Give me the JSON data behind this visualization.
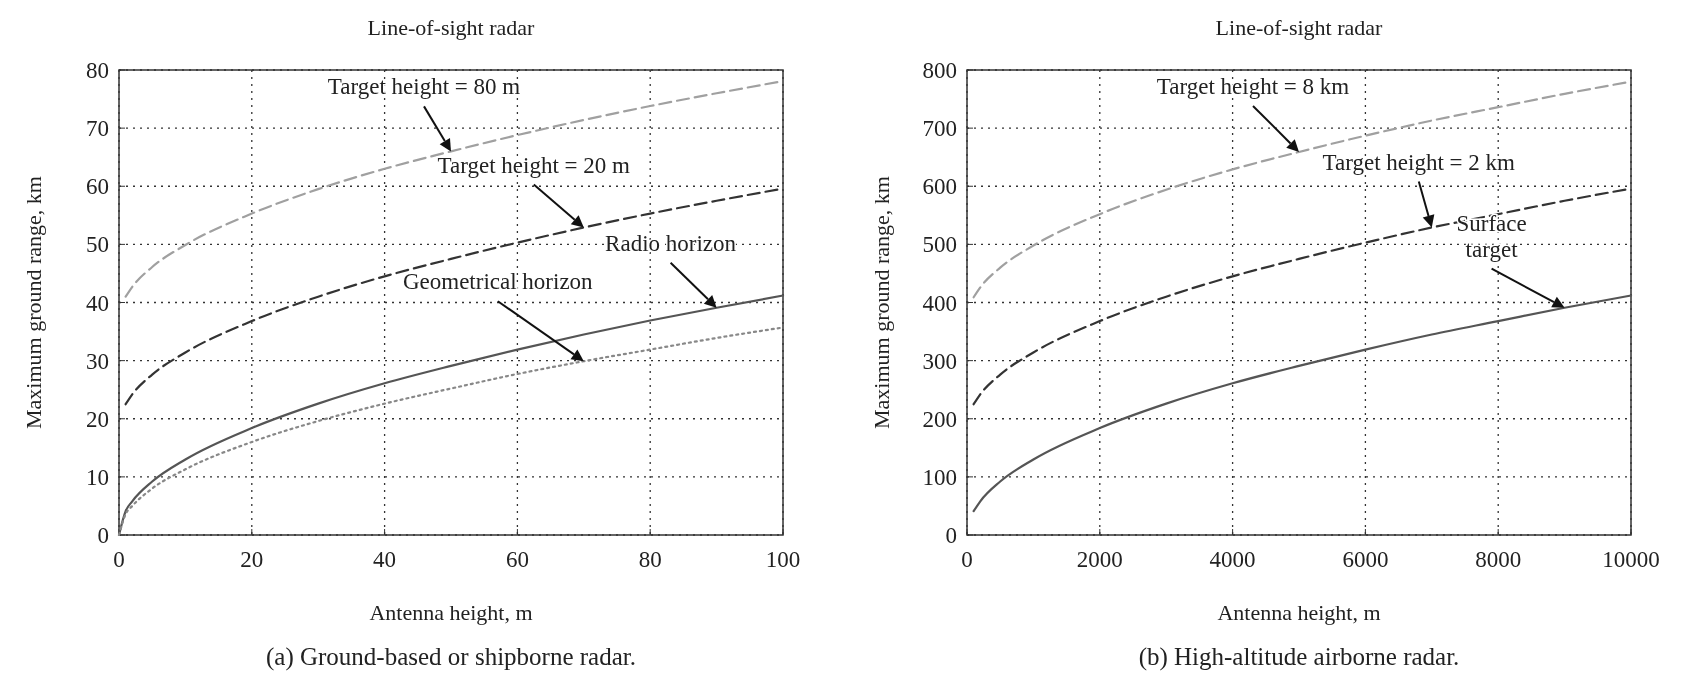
{
  "chart_data": [
    {
      "type": "line",
      "title": "Line-of-sight radar",
      "xlabel": "Antenna height, m",
      "ylabel": "Maximum ground range, km",
      "xlim": [
        0,
        100
      ],
      "ylim": [
        0,
        80
      ],
      "xticks": [
        0,
        20,
        40,
        60,
        80,
        100
      ],
      "yticks": [
        0,
        10,
        20,
        30,
        40,
        50,
        60,
        70,
        80
      ],
      "grid": true,
      "series": [
        {
          "color": "#a0a0a0",
          "line_style": "dashed",
          "x": [
            1,
            2,
            5,
            10,
            20,
            30,
            40,
            50,
            60,
            70,
            80,
            90,
            100
          ],
          "values": [
            41,
            42.7,
            46.1,
            49.9,
            55.3,
            59.5,
            63,
            66,
            68.8,
            71.4,
            73.8,
            76,
            78.1
          ]
        },
        {
          "color": "#333333",
          "line_style": "dashed",
          "x": [
            1,
            2,
            5,
            10,
            20,
            30,
            40,
            50,
            60,
            70,
            80,
            90,
            100
          ],
          "values": [
            22.5,
            24.2,
            27.6,
            31.4,
            36.8,
            41,
            44.5,
            47.5,
            50.3,
            52.9,
            55.3,
            57.5,
            59.6
          ]
        },
        {
          "color": "#555555",
          "line_style": "solid",
          "x": [
            0,
            1,
            2,
            5,
            10,
            20,
            30,
            40,
            50,
            60,
            70,
            80,
            90,
            100
          ],
          "values": [
            0,
            4.1,
            5.8,
            9.2,
            13,
            18.4,
            22.6,
            26.1,
            29.1,
            31.9,
            34.5,
            36.9,
            39.1,
            41.2
          ]
        },
        {
          "color": "#888888",
          "line_style": "dotted",
          "x": [
            0,
            1,
            2,
            5,
            10,
            20,
            30,
            40,
            50,
            60,
            70,
            80,
            90,
            100
          ],
          "values": [
            0,
            3.6,
            5,
            8,
            11.3,
            16,
            19.6,
            22.6,
            25.2,
            27.7,
            29.9,
            31.9,
            33.9,
            35.7
          ]
        }
      ],
      "annotations": [
        {
          "text": "Target height = 80 m",
          "x": 50,
          "y": 66
        },
        {
          "text": "Target height = 20 m",
          "x": 70,
          "y": 52.9
        },
        {
          "text": "Radio horizon",
          "x": 90,
          "y": 39.1
        },
        {
          "text": "Geometrical horizon",
          "x": 70,
          "y": 29.9
        },
        "(a) Ground-based or shipborne radar."
      ]
    },
    {
      "type": "line",
      "title": "Line-of-sight radar",
      "xlabel": "Antenna height, m",
      "ylabel": "Maximum ground range, km",
      "xlim": [
        0,
        10000
      ],
      "ylim": [
        0,
        800
      ],
      "xticks": [
        0,
        2000,
        4000,
        6000,
        8000,
        10000
      ],
      "yticks": [
        0,
        100,
        200,
        300,
        400,
        500,
        600,
        700,
        800
      ],
      "grid": true,
      "series": [
        {
          "color": "#a0a0a0",
          "line_style": "dashed",
          "x": [
            100,
            200,
            500,
            1000,
            2000,
            3000,
            4000,
            5000,
            6000,
            7000,
            8000,
            9000,
            10000
          ],
          "values": [
            409,
            426,
            460,
            498,
            552,
            594,
            629,
            659,
            687,
            713,
            736,
            759,
            780
          ]
        },
        {
          "color": "#333333",
          "line_style": "dashed",
          "x": [
            100,
            200,
            500,
            1000,
            2000,
            3000,
            4000,
            5000,
            6000,
            7000,
            8000,
            9000,
            10000
          ],
          "values": [
            225,
            242,
            276,
            314,
            368,
            410,
            445,
            475,
            503,
            529,
            552,
            575,
            596
          ]
        },
        {
          "color": "#555555",
          "line_style": "solid",
          "x": [
            100,
            200,
            500,
            1000,
            2000,
            3000,
            4000,
            5000,
            6000,
            7000,
            8000,
            9000,
            10000
          ],
          "values": [
            41,
            58,
            92,
            130,
            184,
            226,
            261,
            291,
            319,
            345,
            368,
            391,
            412
          ]
        }
      ],
      "annotations": [
        {
          "text": "Target height = 8 km",
          "x": 5000,
          "y": 659
        },
        {
          "text": "Target height = 2 km",
          "x": 7000,
          "y": 529
        },
        {
          "text": "Surface target",
          "x": 9000,
          "y": 391
        },
        "(b) High-altitude airborne radar."
      ]
    }
  ]
}
